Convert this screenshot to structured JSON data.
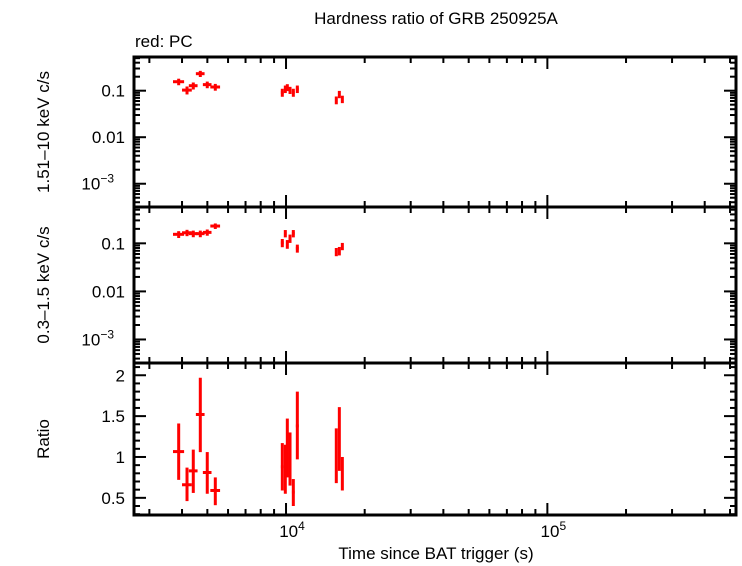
{
  "chart_data": {
    "type": "scatter",
    "title": "Hardness ratio of GRB 250925A",
    "legend_note": "red: PC",
    "xlabel": "Time since BAT trigger (s)",
    "x_scale": "log",
    "xlim": [
      2620,
      527000
    ],
    "x_ticks": [
      {
        "value": 10000,
        "base": "10",
        "exp": "4"
      },
      {
        "value": 100000,
        "base": "10",
        "exp": "5"
      }
    ],
    "series_color": "#ff0000",
    "x": [
      3884,
      4180,
      4417,
      4699,
      4996,
      5363,
      9678,
      9938,
      10115,
      10359,
      10664,
      11048,
      15573,
      15996,
      16425
    ],
    "xerr": [
      190,
      180,
      170,
      180,
      190,
      230,
      120,
      110,
      110,
      120,
      130,
      140,
      150,
      150,
      160
    ],
    "panels": [
      {
        "ylabel": "1.51–10 keV c/s",
        "y_scale": "log",
        "ylim": [
          0.000316,
          0.53
        ],
        "y_ticks": [
          {
            "value": 0.1,
            "label": "0.1"
          },
          {
            "value": 0.01,
            "label": "0.01"
          },
          {
            "value": 0.001,
            "base": "10",
            "exp": "−3"
          }
        ],
        "y": [
          0.156,
          0.103,
          0.128,
          0.232,
          0.135,
          0.12,
          0.092,
          0.109,
          0.118,
          0.103,
          0.092,
          0.109,
          0.063,
          0.084,
          0.066
        ],
        "yerr": [
          0.025,
          0.02,
          0.022,
          0.035,
          0.022,
          0.02,
          0.018,
          0.02,
          0.02,
          0.018,
          0.018,
          0.02,
          0.012,
          0.015,
          0.012
        ]
      },
      {
        "ylabel": "0.3–1.5 keV c/s",
        "y_scale": "log",
        "ylim": [
          0.000324,
          0.57
        ],
        "y_ticks": [
          {
            "value": 0.1,
            "label": "0.1"
          },
          {
            "value": 0.01,
            "label": "0.01"
          },
          {
            "value": 0.001,
            "base": "10",
            "exp": "−3"
          }
        ],
        "y": [
          0.154,
          0.166,
          0.159,
          0.159,
          0.169,
          0.229,
          0.103,
          0.161,
          0.097,
          0.127,
          0.161,
          0.079,
          0.067,
          0.07,
          0.087
        ],
        "yerr": [
          0.025,
          0.025,
          0.025,
          0.025,
          0.025,
          0.03,
          0.02,
          0.028,
          0.02,
          0.025,
          0.028,
          0.015,
          0.013,
          0.014,
          0.015
        ]
      },
      {
        "ylabel": "Ratio",
        "y_scale": "linear",
        "ylim": [
          0.29,
          2.15
        ],
        "y_ticks": [
          {
            "value": 2,
            "label": "2"
          },
          {
            "value": 1.5,
            "label": "1.5"
          },
          {
            "value": 1,
            "label": "1"
          },
          {
            "value": 0.5,
            "label": "0.5"
          }
        ],
        "y": [
          1.066,
          0.66,
          0.83,
          1.52,
          0.81,
          0.59,
          0.88,
          0.96,
          1.11,
          0.98,
          0.57,
          1.38,
          1.02,
          1.21,
          0.8
        ],
        "y_lo": [
          0.72,
          0.46,
          0.56,
          1.06,
          0.55,
          0.41,
          0.59,
          0.55,
          0.75,
          0.65,
          0.4,
          0.97,
          0.68,
          0.83,
          0.59
        ],
        "y_hi": [
          1.41,
          0.87,
          1.09,
          1.97,
          1.06,
          0.75,
          1.17,
          1.15,
          1.47,
          1.3,
          0.73,
          1.8,
          1.35,
          1.61,
          1.0
        ]
      }
    ],
    "grid": false
  }
}
